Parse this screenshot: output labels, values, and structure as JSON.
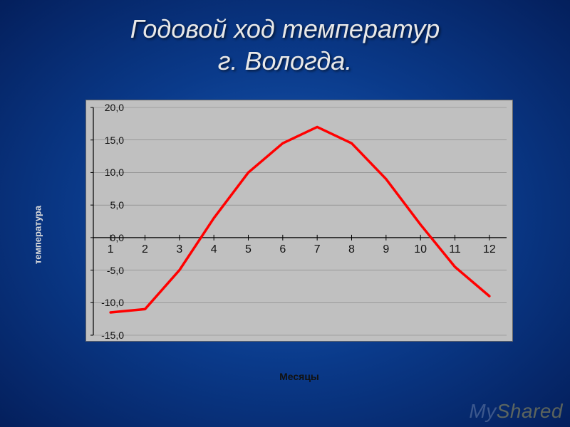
{
  "title_line1": "Годовой ход температур",
  "title_line2": "г. Вологда.",
  "chart": {
    "type": "line",
    "ylabel": "температура",
    "xlabel": "Месяцы",
    "background_color": "#c0c0c0",
    "grid_color": "#808080",
    "axis_color": "#000000",
    "line_color": "#ff0000",
    "line_width": 3.5,
    "ylim": [
      -15,
      20
    ],
    "ytick_step": 5,
    "ytick_format": ",0",
    "yticks": [
      "-15,0",
      "-10,0",
      "-5,0",
      "0,0",
      "5,0",
      "10,0",
      "15,0",
      "20,0"
    ],
    "x_categories": [
      "1",
      "2",
      "3",
      "4",
      "5",
      "6",
      "7",
      "8",
      "9",
      "10",
      "11",
      "12"
    ],
    "values": [
      -11.5,
      -11.0,
      -5.0,
      3.0,
      10.0,
      14.5,
      17.0,
      14.5,
      9.0,
      2.0,
      -4.5,
      -9.0
    ],
    "title_fontsize": 36,
    "label_fontsize": 14,
    "tick_fontsize": 14
  },
  "watermark": {
    "pre": "My",
    "hi": "Shared"
  }
}
